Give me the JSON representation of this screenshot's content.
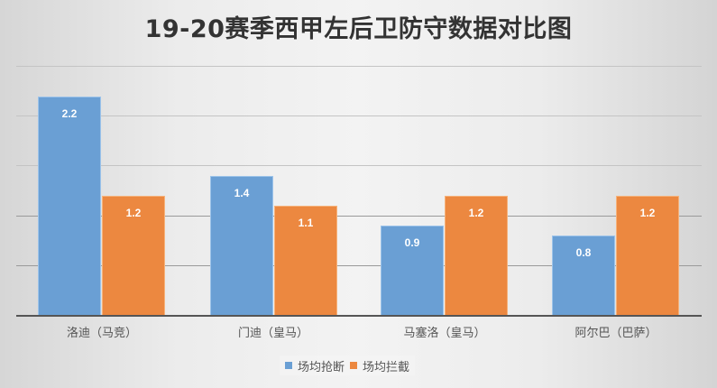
{
  "title": "19-20赛季西甲左后卫防守数据对比图",
  "colors": {
    "series0": "#6a9fd4",
    "series1": "#ec8840"
  },
  "chart_data": {
    "type": "bar",
    "title": "19-20赛季西甲左后卫防守数据对比图",
    "xlabel": "",
    "ylabel": "",
    "categories": [
      "洛迪（马竞）",
      "门迪（皇马）",
      "马塞洛（皇马）",
      "阿尔巴（巴萨）"
    ],
    "series": [
      {
        "name": "场均抢断",
        "color": "#6a9fd4",
        "values": [
          2.2,
          1.4,
          0.9,
          0.8
        ]
      },
      {
        "name": "场均拦截",
        "color": "#ec8840",
        "values": [
          1.2,
          1.1,
          1.2,
          1.2
        ]
      }
    ],
    "ylim": [
      0,
      2.5
    ],
    "grid": true,
    "y_tick_labels_visible": false,
    "legend_position": "bottom",
    "data_labels": true
  },
  "legend": [
    {
      "label": "场均抢断",
      "color": "#6a9fd4"
    },
    {
      "label": "场均拦截",
      "color": "#ec8840"
    }
  ]
}
